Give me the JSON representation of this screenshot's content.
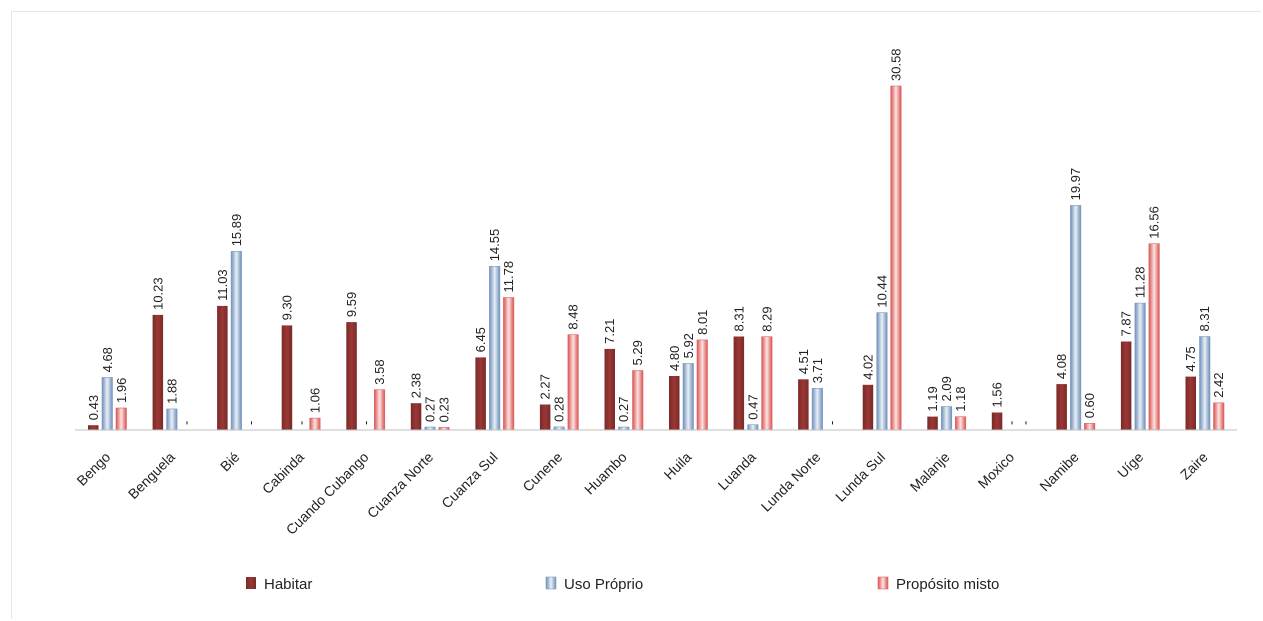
{
  "chart_data": {
    "type": "bar",
    "categories": [
      "Bengo",
      "Benguela",
      "Bié",
      "Cabinda",
      "Cuando Cubango",
      "Cuanza Norte",
      "Cuanza Sul",
      "Cunene",
      "Huambo",
      "Huila",
      "Luanda",
      "Lunda Norte",
      "Lunda Sul",
      "Malanje",
      "Moxico",
      "Namibe",
      "Uíge",
      "Zaire"
    ],
    "series": [
      {
        "name": "Habitar",
        "color": "#953735",
        "values": [
          0.43,
          10.23,
          11.03,
          9.3,
          9.59,
          2.38,
          6.45,
          2.27,
          7.21,
          4.8,
          8.31,
          4.51,
          4.02,
          1.19,
          1.56,
          4.08,
          7.87,
          4.75
        ],
        "labels": [
          "0.43",
          "10.23",
          "11.03",
          "9.30",
          "9.59",
          "2.38",
          "6.45",
          "2.27",
          "7.21",
          "4.80",
          "8.31",
          "4.51",
          "4.02",
          "1.19",
          "1.56",
          "4.08",
          "7.87",
          "4.75"
        ]
      },
      {
        "name": "Uso Próprio",
        "color": "#7f9cc0",
        "values": [
          4.68,
          1.88,
          15.89,
          0,
          0,
          0.27,
          14.55,
          0.28,
          0.27,
          5.92,
          0.47,
          3.71,
          10.44,
          2.09,
          0,
          19.97,
          11.28,
          8.31
        ],
        "labels": [
          "4.68",
          "1.88",
          "15.89",
          "-",
          "-",
          "0.27",
          "14.55",
          "0.28",
          "0.27",
          "5.92",
          "0.47",
          "3.71",
          "10.44",
          "2.09",
          "-",
          "19.97",
          "11.28",
          "8.31"
        ]
      },
      {
        "name": "Propósito misto",
        "color": "#e06666",
        "values": [
          1.96,
          0,
          0,
          1.06,
          3.58,
          0.23,
          11.78,
          8.48,
          5.29,
          8.01,
          8.29,
          0,
          30.58,
          1.18,
          0,
          0.6,
          16.56,
          2.42
        ],
        "labels": [
          "1.96",
          "-",
          "-",
          "1.06",
          "3.58",
          "0.23",
          "11.78",
          "8.48",
          "5.29",
          "8.01",
          "8.29",
          "-",
          "30.58",
          "1.18",
          "-",
          "0.60",
          "16.56",
          "2.42"
        ]
      }
    ],
    "ylim": [
      0,
      32
    ],
    "grid": false,
    "legend": "bottom",
    "title": "",
    "xlabel": "",
    "ylabel": ""
  }
}
